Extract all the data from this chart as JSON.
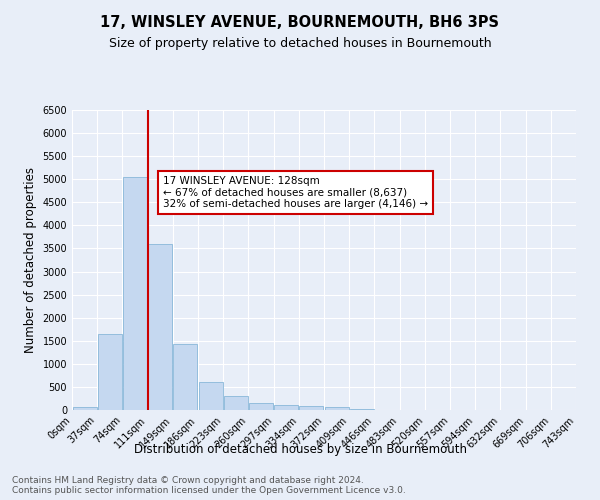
{
  "title": "17, WINSLEY AVENUE, BOURNEMOUTH, BH6 3PS",
  "subtitle": "Size of property relative to detached houses in Bournemouth",
  "xlabel": "Distribution of detached houses by size in Bournemouth",
  "ylabel": "Number of detached properties",
  "bar_values": [
    75,
    1650,
    5050,
    3600,
    1420,
    600,
    305,
    155,
    115,
    85,
    55,
    30,
    0,
    0,
    0,
    0,
    0,
    0,
    0,
    0
  ],
  "bin_labels": [
    "0sqm",
    "37sqm",
    "74sqm",
    "111sqm",
    "149sqm",
    "186sqm",
    "223sqm",
    "260sqm",
    "297sqm",
    "334sqm",
    "372sqm",
    "409sqm",
    "446sqm",
    "483sqm",
    "520sqm",
    "557sqm",
    "594sqm",
    "632sqm",
    "669sqm",
    "706sqm",
    "743sqm"
  ],
  "bar_color": "#c5d8f0",
  "bar_edge_color": "#7aafd4",
  "vline_color": "#cc0000",
  "annotation_text": "17 WINSLEY AVENUE: 128sqm\n← 67% of detached houses are smaller (8,637)\n32% of semi-detached houses are larger (4,146) →",
  "annotation_box_color": "#ffffff",
  "annotation_box_edge": "#cc0000",
  "ylim": [
    0,
    6500
  ],
  "yticks": [
    0,
    500,
    1000,
    1500,
    2000,
    2500,
    3000,
    3500,
    4000,
    4500,
    5000,
    5500,
    6000,
    6500
  ],
  "background_color": "#e8eef8",
  "grid_color": "#ffffff",
  "footer_text": "Contains HM Land Registry data © Crown copyright and database right 2024.\nContains public sector information licensed under the Open Government Licence v3.0.",
  "title_fontsize": 10.5,
  "subtitle_fontsize": 9,
  "xlabel_fontsize": 8.5,
  "ylabel_fontsize": 8.5,
  "tick_fontsize": 7,
  "footer_fontsize": 6.5,
  "annot_fontsize": 7.5
}
